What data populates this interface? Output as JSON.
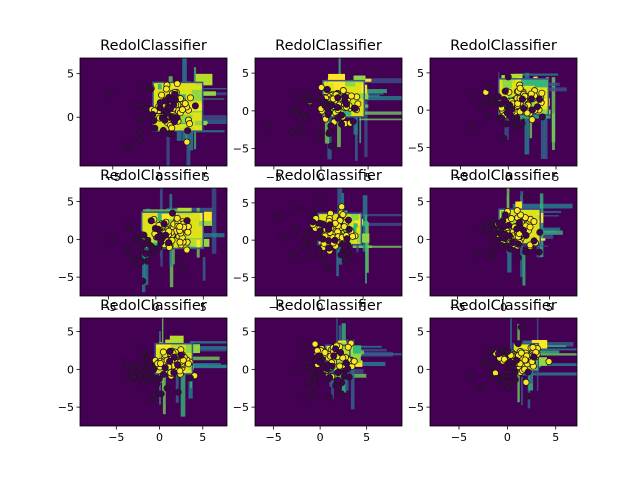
{
  "figure": {
    "background": "#ffffff"
  },
  "chart_data": [
    {
      "type": "scatter",
      "title": "RedolClassifier",
      "xlim": [
        -8.5,
        7.2
      ],
      "ylim": [
        -5.6,
        6.8
      ],
      "xticks": [
        -5,
        0,
        5
      ],
      "yticks": [
        0,
        5
      ],
      "xtick_labels": [
        "−5",
        "0",
        "5"
      ],
      "ytick_labels": [
        "0",
        "5"
      ],
      "background_color": "#440154",
      "region_color": "#dde318",
      "edge_color": "#3b528b",
      "class_colors": {
        "0": "#440154",
        "1": "#fde725"
      },
      "region": [
        -0.7,
        4.6,
        -1.6,
        4.0
      ],
      "blobs": [
        {
          "class": 1,
          "center": [
            1.5,
            1.0
          ],
          "spread": 2.0,
          "count": 60
        },
        {
          "class": 0,
          "center": [
            0.0,
            0.2
          ],
          "spread": 3.2,
          "count": 40
        }
      ]
    },
    {
      "type": "scatter",
      "title": "RedolClassifier",
      "xlim": [
        -7.0,
        8.6
      ],
      "ylim": [
        -7.3,
        7.0
      ],
      "xticks": [
        -5,
        0,
        5
      ],
      "yticks": [
        -5,
        0,
        5
      ],
      "xtick_labels": [
        "−5",
        "0",
        "5"
      ],
      "ytick_labels": [
        "−5",
        "0",
        "5"
      ],
      "background_color": "#440154",
      "region_color": "#dde318",
      "edge_color": "#3b528b",
      "class_colors": {
        "0": "#440154",
        "1": "#fde725"
      },
      "region": [
        0.2,
        4.6,
        -0.8,
        4.0
      ],
      "blobs": [
        {
          "class": 1,
          "center": [
            1.5,
            1.0
          ],
          "spread": 2.0,
          "count": 60
        },
        {
          "class": 0,
          "center": [
            0.5,
            0.0
          ],
          "spread": 3.2,
          "count": 40
        }
      ]
    },
    {
      "type": "scatter",
      "title": "RedolClassifier",
      "xlim": [
        -8.2,
        7.2
      ],
      "ylim": [
        -7.5,
        7.0
      ],
      "xticks": [
        -5,
        0,
        5
      ],
      "yticks": [
        -5,
        0,
        5
      ],
      "xtick_labels": [
        "−5",
        "0",
        "5"
      ],
      "ytick_labels": [
        "−5",
        "0",
        "5"
      ],
      "background_color": "#440154",
      "region_color": "#dde318",
      "edge_color": "#3b528b",
      "class_colors": {
        "0": "#440154",
        "1": "#fde725"
      },
      "region": [
        -1.0,
        4.2,
        -0.6,
        4.2
      ],
      "blobs": [
        {
          "class": 1,
          "center": [
            1.2,
            1.3
          ],
          "spread": 2.0,
          "count": 60
        },
        {
          "class": 0,
          "center": [
            0.0,
            0.0
          ],
          "spread": 3.2,
          "count": 40
        }
      ]
    },
    {
      "type": "scatter",
      "title": "RedolClassifier",
      "xlim": [
        -8.0,
        7.5
      ],
      "ylim": [
        -7.5,
        6.8
      ],
      "xticks": [
        -5,
        0,
        5
      ],
      "yticks": [
        -5,
        0,
        5
      ],
      "xtick_labels": [
        "−5",
        "0",
        "5"
      ],
      "ytick_labels": [
        "−5",
        "0",
        "5"
      ],
      "background_color": "#440154",
      "region_color": "#dde318",
      "edge_color": "#3b528b",
      "class_colors": {
        "0": "#440154",
        "1": "#fde725"
      },
      "region": [
        -1.5,
        5.0,
        -1.2,
        3.6
      ],
      "blobs": [
        {
          "class": 1,
          "center": [
            1.5,
            1.0
          ],
          "spread": 2.0,
          "count": 60
        },
        {
          "class": 0,
          "center": [
            -0.5,
            -0.5
          ],
          "spread": 3.2,
          "count": 40
        }
      ]
    },
    {
      "type": "scatter",
      "title": "RedolClassifier",
      "xlim": [
        -7.5,
        9.5
      ],
      "ylim": [
        -7.5,
        7.0
      ],
      "xticks": [
        -5,
        0,
        5
      ],
      "yticks": [
        -5,
        0,
        5
      ],
      "xtick_labels": [
        "−5",
        "0",
        "5"
      ],
      "ytick_labels": [
        "−5",
        "0",
        "5"
      ],
      "background_color": "#440154",
      "region_color": "#dde318",
      "edge_color": "#3b528b",
      "class_colors": {
        "0": "#440154",
        "1": "#fde725"
      },
      "region": [
        -0.2,
        4.8,
        -0.6,
        3.6
      ],
      "blobs": [
        {
          "class": 1,
          "center": [
            1.5,
            1.5
          ],
          "spread": 2.0,
          "count": 60
        },
        {
          "class": 0,
          "center": [
            0.5,
            0.0
          ],
          "spread": 3.5,
          "count": 40
        }
      ]
    },
    {
      "type": "scatter",
      "title": "RedolClassifier",
      "xlim": [
        -8.0,
        8.0
      ],
      "ylim": [
        -7.5,
        6.8
      ],
      "xticks": [
        -5,
        0,
        5
      ],
      "yticks": [
        -5,
        0,
        5
      ],
      "xtick_labels": [
        "−5",
        "0",
        "5"
      ],
      "ytick_labels": [
        "−5",
        "0",
        "5"
      ],
      "background_color": "#440154",
      "region_color": "#dde318",
      "edge_color": "#3b528b",
      "class_colors": {
        "0": "#440154",
        "1": "#fde725"
      },
      "region": [
        -0.5,
        4.0,
        -0.6,
        4.0
      ],
      "blobs": [
        {
          "class": 1,
          "center": [
            1.5,
            1.5
          ],
          "spread": 2.0,
          "count": 60
        },
        {
          "class": 0,
          "center": [
            0.5,
            0.0
          ],
          "spread": 3.2,
          "count": 40
        }
      ]
    },
    {
      "type": "scatter",
      "title": "RedolClassifier",
      "xlim": [
        -9.2,
        7.8
      ],
      "ylim": [
        -7.5,
        6.8
      ],
      "xticks": [
        -5,
        0,
        5
      ],
      "yticks": [
        -5,
        0,
        5
      ],
      "xtick_labels": [
        "−5",
        "0",
        "5"
      ],
      "ytick_labels": [
        "−5",
        "0",
        "5"
      ],
      "background_color": "#440154",
      "region_color": "#dde318",
      "edge_color": "#3b528b",
      "class_colors": {
        "0": "#440154",
        "1": "#fde725"
      },
      "region": [
        -0.5,
        3.8,
        -0.6,
        3.4
      ],
      "blobs": [
        {
          "class": 1,
          "center": [
            1.5,
            1.0
          ],
          "spread": 2.0,
          "count": 60
        },
        {
          "class": 0,
          "center": [
            -0.5,
            -0.5
          ],
          "spread": 3.2,
          "count": 40
        }
      ]
    },
    {
      "type": "scatter",
      "title": "RedolClassifier",
      "xlim": [
        -7.0,
        8.8
      ],
      "ylim": [
        -7.5,
        6.8
      ],
      "xticks": [
        -5,
        0,
        5
      ],
      "yticks": [
        -5,
        0,
        5
      ],
      "xtick_labels": [
        "−5",
        "0",
        "5"
      ],
      "ytick_labels": [
        "−5",
        "0",
        "5"
      ],
      "background_color": "#440154",
      "region_color": "#dde318",
      "edge_color": "#3b528b",
      "class_colors": {
        "0": "#440154",
        "1": "#fde725"
      },
      "region": [
        0.6,
        3.2,
        -0.2,
        3.2
      ],
      "blobs": [
        {
          "class": 1,
          "center": [
            1.5,
            1.5
          ],
          "spread": 2.0,
          "count": 60
        },
        {
          "class": 0,
          "center": [
            0.5,
            0.0
          ],
          "spread": 3.2,
          "count": 40
        }
      ]
    },
    {
      "type": "scatter",
      "title": "RedolClassifier",
      "xlim": [
        -8.0,
        7.2
      ],
      "ylim": [
        -7.5,
        6.8
      ],
      "xticks": [
        -5,
        0,
        5
      ],
      "yticks": [
        -5,
        0,
        5
      ],
      "xtick_labels": [
        "−5",
        "0",
        "5"
      ],
      "ytick_labels": [
        "−5",
        "0",
        "5"
      ],
      "background_color": "#440154",
      "region_color": "#dde318",
      "edge_color": "#3b528b",
      "class_colors": {
        "0": "#440154",
        "1": "#fde725"
      },
      "region": [
        0.6,
        3.2,
        -0.2,
        3.4
      ],
      "blobs": [
        {
          "class": 1,
          "center": [
            1.3,
            1.3
          ],
          "spread": 1.9,
          "count": 60
        },
        {
          "class": 0,
          "center": [
            0.3,
            0.0
          ],
          "spread": 3.0,
          "count": 40
        }
      ]
    }
  ]
}
